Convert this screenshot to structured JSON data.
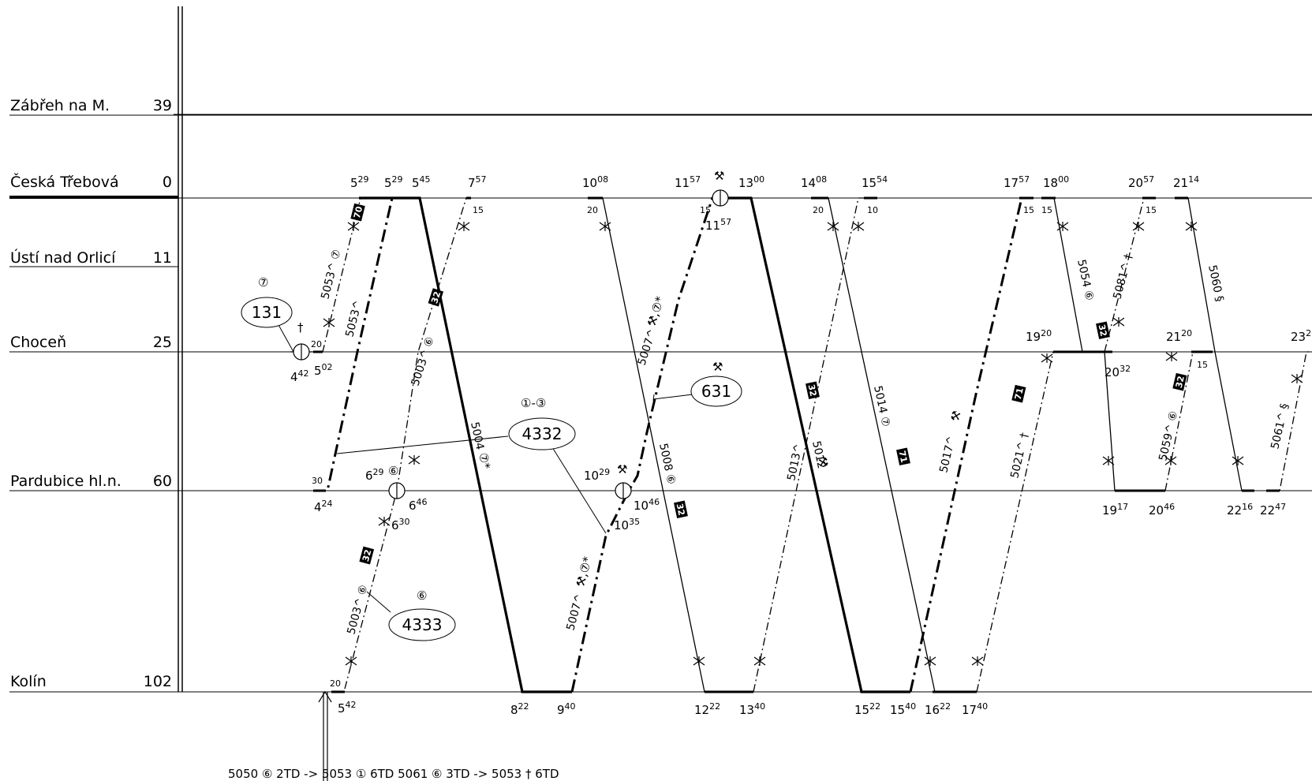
{
  "stations": [
    {
      "name": "Zábřeh na M.",
      "km": "39"
    },
    {
      "name": "Česká Třebová",
      "km": "0"
    },
    {
      "name": "Ústí nad Orlicí",
      "km": "11"
    },
    {
      "name": "Choceň",
      "km": "25"
    },
    {
      "name": "Pardubice hl.n.",
      "km": "60"
    },
    {
      "name": "Kolín",
      "km": "102"
    }
  ],
  "times": [
    {
      "h": "5",
      "m": "29"
    },
    {
      "h": "5",
      "m": "29"
    },
    {
      "h": "5",
      "m": "45"
    },
    {
      "h": "7",
      "m": "57"
    },
    {
      "h": "10",
      "m": "08"
    },
    {
      "h": "11",
      "m": "57"
    },
    {
      "h": "13",
      "m": "00"
    },
    {
      "h": "14",
      "m": "08"
    },
    {
      "h": "15",
      "m": "54"
    },
    {
      "h": "17",
      "m": "57"
    },
    {
      "h": "18",
      "m": "00"
    },
    {
      "h": "20",
      "m": "57"
    },
    {
      "h": "21",
      "m": "14"
    },
    {
      "h": "11",
      "m": "57"
    },
    {
      "h": "4",
      "m": "42"
    },
    {
      "h": "5",
      "m": "02"
    },
    {
      "h": "19",
      "m": "20"
    },
    {
      "h": "21",
      "m": "20"
    },
    {
      "h": "20",
      "m": "32"
    },
    {
      "h": "23",
      "m": "2"
    },
    {
      "h": "6",
      "m": "29"
    },
    {
      "h": "10",
      "m": "29"
    },
    {
      "h": "4",
      "m": "24"
    },
    {
      "h": "6",
      "m": "46"
    },
    {
      "h": "6",
      "m": "30"
    },
    {
      "h": "10",
      "m": "46"
    },
    {
      "h": "10",
      "m": "35"
    },
    {
      "h": "19",
      "m": "17"
    },
    {
      "h": "20",
      "m": "46"
    },
    {
      "h": "22",
      "m": "16"
    },
    {
      "h": "22",
      "m": "47"
    },
    {
      "h": "5",
      "m": "42"
    },
    {
      "h": "8",
      "m": "22"
    },
    {
      "h": "9",
      "m": "40"
    },
    {
      "h": "12",
      "m": "22"
    },
    {
      "h": "13",
      "m": "40"
    },
    {
      "h": "15",
      "m": "22"
    },
    {
      "h": "15",
      "m": "40"
    },
    {
      "h": "16",
      "m": "22"
    },
    {
      "h": "17",
      "m": "40"
    }
  ],
  "dwell_marks": [
    "15",
    "20",
    "15",
    "10",
    "15",
    "15",
    "15",
    "20",
    "20",
    "15",
    "30",
    "20",
    "20"
  ],
  "train_numbers": [
    "5053^ ⑦",
    "5053^",
    "5003^ ⑥",
    "5004",
    "5007^",
    "5008 ⑥",
    "5013^",
    "5012",
    "5014 ⑦",
    "5017^",
    "5021^ †",
    "5054 ⑥",
    "5081^ †",
    "5060 §",
    "5059^ ⑥",
    "5061^ §",
    "5003^ ⑥",
    "5007^"
  ],
  "badges": [
    "70",
    "32",
    "32",
    "71",
    "71",
    "32",
    "32",
    "32",
    "32",
    "32"
  ],
  "symbols": {
    "hammer": "⚒",
    "sun": "⑦",
    "one_three": "①-③",
    "six": "⑥",
    "seven": "⑦",
    "cross": "†",
    "sun_star": "⑦*",
    "hammer_star": "⚒,⑦*"
  },
  "callouts": [
    {
      "number": "131",
      "note": "⑦"
    },
    {
      "number": "631",
      "note": "⚒"
    },
    {
      "number": "4332",
      "note": "①-③"
    },
    {
      "number": "4333",
      "note": "⑥"
    }
  ],
  "footer": "5050 ⑥ 2TD -> 5053 ① 6TD   5061 ⑥ 3TD -> 5053 † 6TD"
}
